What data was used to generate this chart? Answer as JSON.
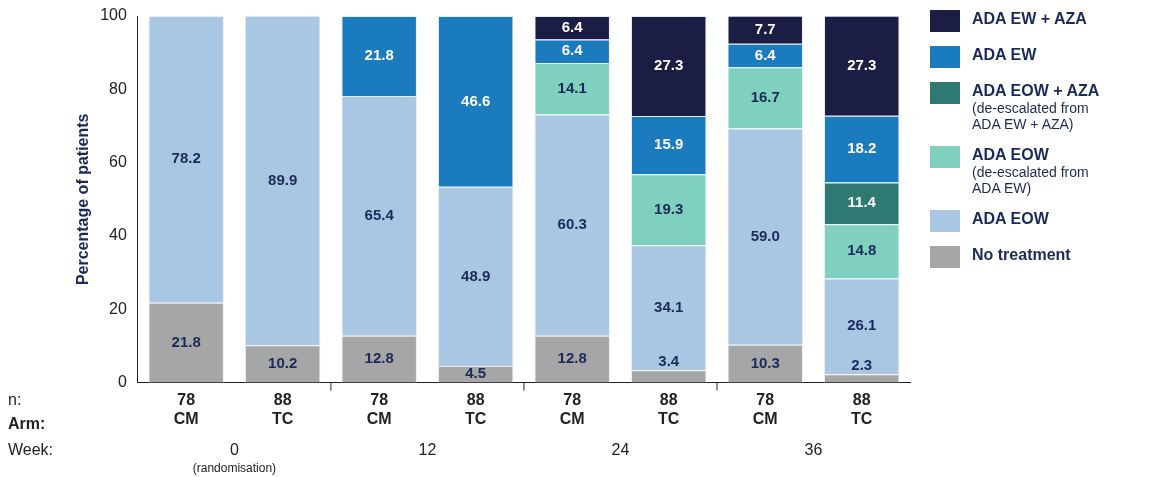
{
  "chart_data": {
    "type": "bar",
    "stacked": true,
    "ylabel": "Percentage of patients",
    "ylim": [
      0,
      100
    ],
    "yticks": [
      0,
      20,
      40,
      60,
      80,
      100
    ],
    "grid": false,
    "legend": "right",
    "data_labels": true,
    "categories": [
      "78\nCM",
      "88\nTC",
      "78\nCM",
      "88\nTC",
      "78\nCM",
      "88\nTC",
      "78\nCM",
      "88\nTC"
    ],
    "annotations": [
      "n:",
      "Arm:",
      "Week:",
      "0\n(randomisation)",
      "12",
      "24",
      "36"
    ],
    "series": [
      {
        "name": "No treatment",
        "color": "#a6a6a6",
        "values": [
          21.8,
          10.2,
          12.8,
          4.5,
          12.8,
          3.4,
          10.3,
          2.3
        ]
      },
      {
        "name": "ADA EOW",
        "color": "#a9c6e3",
        "values": [
          78.2,
          89.9,
          65.4,
          48.9,
          60.3,
          34.1,
          59.0,
          26.1
        ],
        "value_labels": [
          "78.2",
          "89.9",
          "65.4",
          "48.9",
          "60.3",
          "34.1",
          "59.0",
          "26.1"
        ]
      },
      {
        "name": "ADA EOW\n(de-escalated from\nADA EW)",
        "color": "#80d0c0",
        "values": [
          null,
          null,
          null,
          null,
          14.1,
          19.3,
          16.7,
          14.8
        ]
      },
      {
        "name": "ADA EOW + AZA\n(de-escalated from\nADA EW + AZA)",
        "color": "#2e7a72",
        "values": [
          null,
          null,
          null,
          null,
          null,
          null,
          null,
          11.4
        ]
      },
      {
        "name": "ADA EW",
        "color": "#1a7bbf",
        "values": [
          null,
          null,
          21.8,
          46.6,
          6.4,
          15.9,
          6.4,
          18.2
        ]
      },
      {
        "name": "ADA EW + AZA",
        "color": "#1b1d44",
        "values": [
          null,
          null,
          null,
          null,
          6.4,
          27.3,
          7.7,
          27.3
        ]
      }
    ]
  }
}
